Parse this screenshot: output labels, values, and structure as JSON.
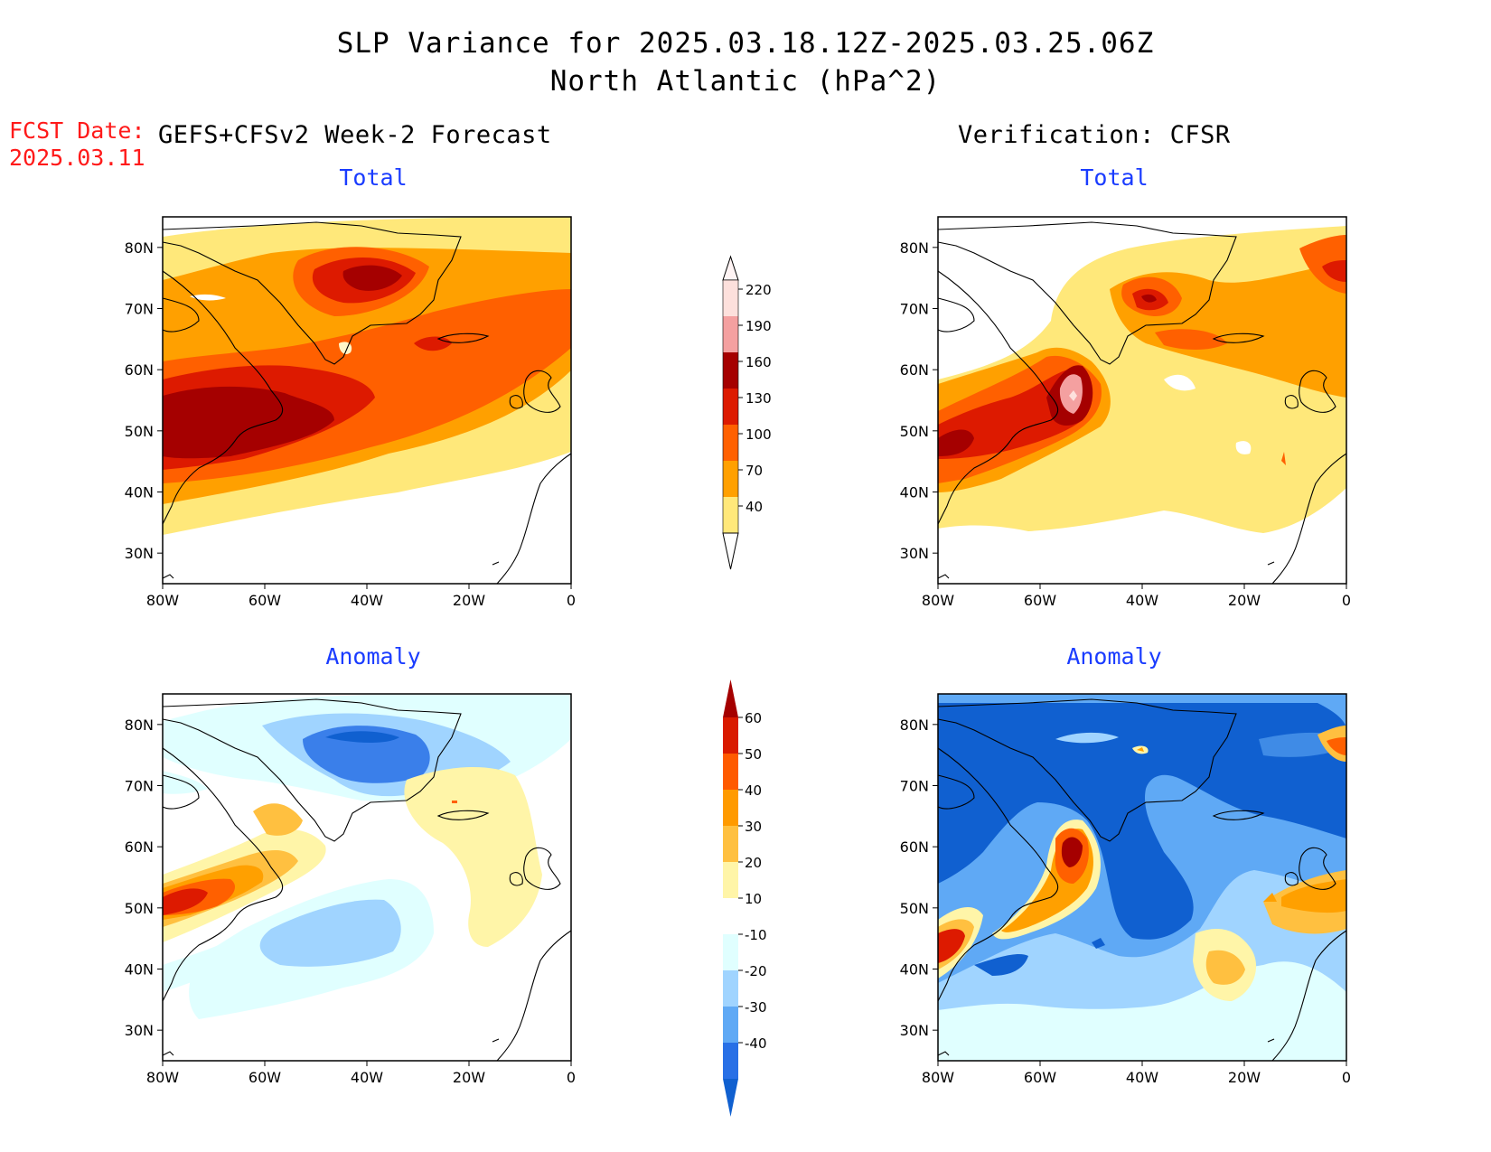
{
  "title_line1": "SLP Variance for 2025.03.18.12Z-2025.03.25.06Z",
  "title_line2": "North Atlantic (hPa^2)",
  "fcst_date_label": "FCST Date:",
  "fcst_date_value": "2025.03.11",
  "left_header": "GEFS+CFSv2 Week-2 Forecast",
  "right_header": "Verification: CFSR",
  "panels": [
    {
      "id": "forecast-total",
      "subtitle": "Total"
    },
    {
      "id": "verification-total",
      "subtitle": "Total"
    },
    {
      "id": "forecast-anomaly",
      "subtitle": "Anomaly"
    },
    {
      "id": "verification-anomaly",
      "subtitle": "Anomaly"
    }
  ],
  "lat_ticks": [
    "80N",
    "70N",
    "60N",
    "50N",
    "40N",
    "30N"
  ],
  "lon_ticks": [
    "80W",
    "60W",
    "40W",
    "20W",
    "0"
  ],
  "map_extent": {
    "lon_min": -80,
    "lon_max": 0,
    "lat_min": 25,
    "lat_max": 85
  },
  "total_colorbar": {
    "labels": [
      "220",
      "190",
      "160",
      "130",
      "100",
      "70",
      "40"
    ],
    "colors": [
      "#fde0dc",
      "#f4a0a0",
      "#a50000",
      "#dd1a00",
      "#ff6000",
      "#ffa000",
      "#ffe87a"
    ]
  },
  "anomaly_colorbar": {
    "labels": [
      "60",
      "50",
      "40",
      "30",
      "20",
      "10",
      "-10",
      "-20",
      "-30",
      "-40"
    ],
    "colors": [
      "#a50000",
      "#d91a00",
      "#ff5a00",
      "#ff9a00",
      "#ffc040",
      "#fff5a8",
      "#ffffff",
      "#e0ffff",
      "#a0d4ff",
      "#5fa9f5",
      "#2870e6",
      "#1060d0"
    ]
  }
}
